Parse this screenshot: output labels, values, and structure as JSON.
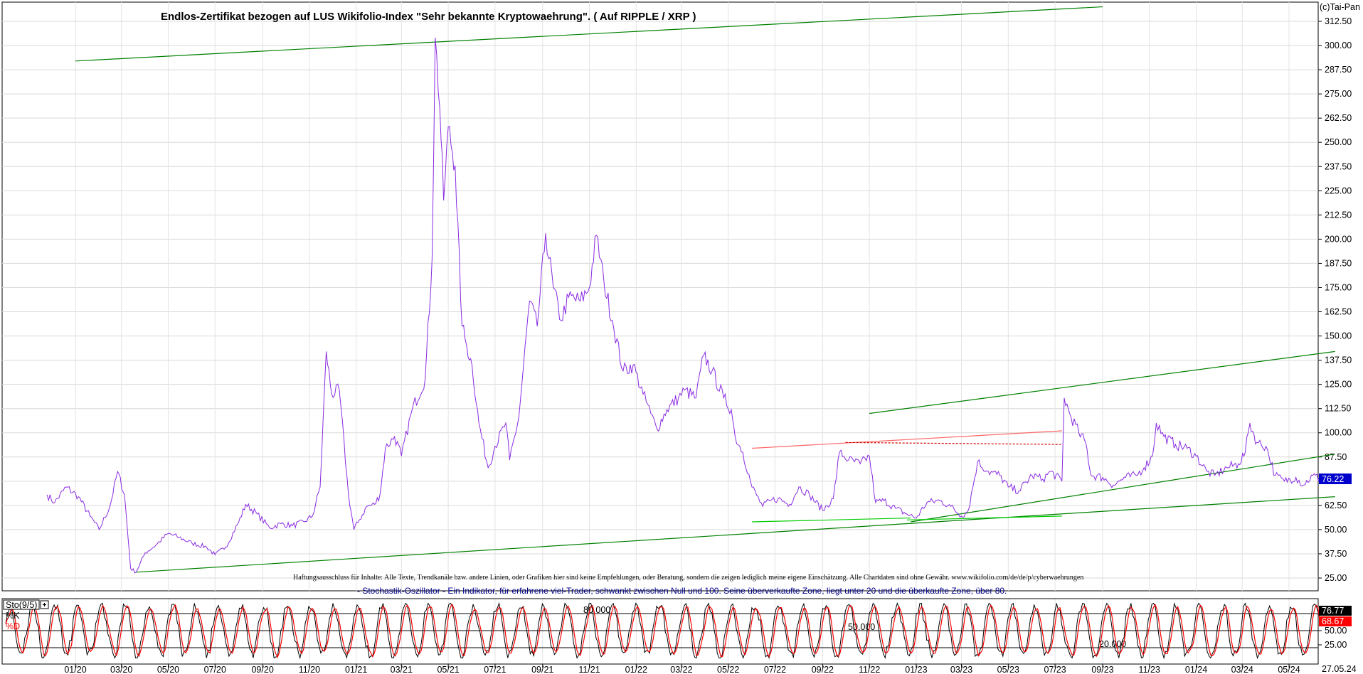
{
  "chart_data": [
    {
      "type": "line",
      "title": "Endlos-Zertifikat bezogen auf LUS Wikifolio-Index \"Sehr bekannte Kryptowaehrung\". ( Auf RIPPLE / XRP )",
      "copyright": "(c)Tai-Pan",
      "disclaimer": "Haftungsausschluss für Inhalte: Alle Texte, Trendkanäle bzw. andere Linien, oder Grafiken hier sind keine Empfehlungen, oder Beratung, sondern die zeigen lediglich meine eigene Einschätzung. Alle Chartdaten sind ohne Gewähr.  www.wikifolio.com/de/de/p/cyberwaehrungen",
      "ylim": [
        25,
        312.5
      ],
      "yticks": [
        "312.50",
        "300.00",
        "287.50",
        "275.00",
        "262.50",
        "250.00",
        "237.50",
        "225.00",
        "212.50",
        "200.00",
        "187.50",
        "175.00",
        "162.50",
        "150.00",
        "137.50",
        "125.00",
        "112.50",
        "100.00",
        "87.50",
        "75.00",
        "62.50",
        "50.00",
        "37.50",
        "25.00"
      ],
      "last_value_label": "76.22",
      "last_value": 76.22,
      "x_range": [
        "2019-11-25",
        "2024-06-15"
      ],
      "series_color": "#8a2be2",
      "series": [
        {
          "values": [
            [
              "2019-11-25",
              68
            ],
            [
              "2019-12-05",
              64
            ],
            [
              "2019-12-20",
              72
            ],
            [
              "2020-01-05",
              67
            ],
            [
              "2020-01-20",
              57
            ],
            [
              "2020-02-01",
              50
            ],
            [
              "2020-02-15",
              62
            ],
            [
              "2020-02-25",
              80
            ],
            [
              "2020-03-05",
              68
            ],
            [
              "2020-03-13",
              30
            ],
            [
              "2020-03-20",
              28
            ],
            [
              "2020-04-01",
              38
            ],
            [
              "2020-04-15",
              42
            ],
            [
              "2020-05-01",
              48
            ],
            [
              "2020-05-15",
              46
            ],
            [
              "2020-06-01",
              43
            ],
            [
              "2020-06-20",
              41
            ],
            [
              "2020-07-01",
              37
            ],
            [
              "2020-07-15",
              41
            ],
            [
              "2020-08-01",
              54
            ],
            [
              "2020-08-10",
              63
            ],
            [
              "2020-08-25",
              58
            ],
            [
              "2020-09-10",
              51
            ],
            [
              "2020-09-25",
              53
            ],
            [
              "2020-10-10",
              52
            ],
            [
              "2020-10-25",
              54
            ],
            [
              "2020-11-05",
              57
            ],
            [
              "2020-11-15",
              72
            ],
            [
              "2020-11-23",
              142
            ],
            [
              "2020-11-30",
              120
            ],
            [
              "2020-12-10",
              122
            ],
            [
              "2020-12-22",
              68
            ],
            [
              "2020-12-29",
              50
            ],
            [
              "2021-01-05",
              55
            ],
            [
              "2021-01-15",
              62
            ],
            [
              "2021-01-25",
              63
            ],
            [
              "2021-02-01",
              68
            ],
            [
              "2021-02-08",
              92
            ],
            [
              "2021-02-20",
              98
            ],
            [
              "2021-03-01",
              88
            ],
            [
              "2021-03-15",
              112
            ],
            [
              "2021-04-01",
              128
            ],
            [
              "2021-04-10",
              190
            ],
            [
              "2021-04-14",
              304
            ],
            [
              "2021-04-20",
              268
            ],
            [
              "2021-04-25",
              220
            ],
            [
              "2021-05-01",
              258
            ],
            [
              "2021-05-10",
              238
            ],
            [
              "2021-05-19",
              155
            ],
            [
              "2021-05-25",
              145
            ],
            [
              "2021-06-01",
              135
            ],
            [
              "2021-06-10",
              105
            ],
            [
              "2021-06-22",
              82
            ],
            [
              "2021-07-01",
              93
            ],
            [
              "2021-07-15",
              105
            ],
            [
              "2021-07-20",
              86
            ],
            [
              "2021-08-01",
              108
            ],
            [
              "2021-08-15",
              168
            ],
            [
              "2021-08-25",
              155
            ],
            [
              "2021-09-05",
              203
            ],
            [
              "2021-09-15",
              175
            ],
            [
              "2021-09-25",
              158
            ],
            [
              "2021-10-05",
              170
            ],
            [
              "2021-10-20",
              168
            ],
            [
              "2021-11-01",
              175
            ],
            [
              "2021-11-10",
              202
            ],
            [
              "2021-11-20",
              178
            ],
            [
              "2021-12-01",
              158
            ],
            [
              "2021-12-15",
              132
            ],
            [
              "2021-12-28",
              135
            ],
            [
              "2022-01-10",
              120
            ],
            [
              "2022-01-20",
              110
            ],
            [
              "2022-01-28",
              102
            ],
            [
              "2022-02-10",
              112
            ],
            [
              "2022-02-25",
              118
            ],
            [
              "2022-03-05",
              122
            ],
            [
              "2022-03-20",
              118
            ],
            [
              "2022-03-30",
              140
            ],
            [
              "2022-04-10",
              132
            ],
            [
              "2022-04-25",
              118
            ],
            [
              "2022-05-05",
              112
            ],
            [
              "2022-05-10",
              98
            ],
            [
              "2022-05-20",
              90
            ],
            [
              "2022-06-01",
              72
            ],
            [
              "2022-06-15",
              62
            ],
            [
              "2022-06-25",
              65
            ],
            [
              "2022-07-05",
              66
            ],
            [
              "2022-07-20",
              63
            ],
            [
              "2022-08-01",
              72
            ],
            [
              "2022-08-15",
              68
            ],
            [
              "2022-09-01",
              60
            ],
            [
              "2022-09-15",
              66
            ],
            [
              "2022-09-23",
              90
            ],
            [
              "2022-10-05",
              86
            ],
            [
              "2022-10-20",
              84
            ],
            [
              "2022-11-01",
              88
            ],
            [
              "2022-11-09",
              64
            ],
            [
              "2022-11-20",
              65
            ],
            [
              "2022-12-05",
              61
            ],
            [
              "2022-12-20",
              58
            ],
            [
              "2023-01-01",
              56
            ],
            [
              "2023-01-15",
              64
            ],
            [
              "2023-02-01",
              65
            ],
            [
              "2023-02-15",
              62
            ],
            [
              "2023-03-01",
              57
            ],
            [
              "2023-03-10",
              60
            ],
            [
              "2023-03-22",
              85
            ],
            [
              "2023-04-05",
              80
            ],
            [
              "2023-04-20",
              78
            ],
            [
              "2023-05-01",
              72
            ],
            [
              "2023-05-15",
              70
            ],
            [
              "2023-06-01",
              78
            ],
            [
              "2023-06-15",
              76
            ],
            [
              "2023-06-25",
              80
            ],
            [
              "2023-07-10",
              75
            ],
            [
              "2023-07-13",
              118
            ],
            [
              "2023-07-20",
              110
            ],
            [
              "2023-08-01",
              100
            ],
            [
              "2023-08-10",
              95
            ],
            [
              "2023-08-17",
              78
            ],
            [
              "2023-09-01",
              77
            ],
            [
              "2023-09-15",
              73
            ],
            [
              "2023-10-01",
              77
            ],
            [
              "2023-10-15",
              78
            ],
            [
              "2023-10-25",
              82
            ],
            [
              "2023-11-05",
              88
            ],
            [
              "2023-11-10",
              105
            ],
            [
              "2023-11-20",
              98
            ],
            [
              "2023-12-05",
              94
            ],
            [
              "2023-12-20",
              92
            ],
            [
              "2024-01-01",
              88
            ],
            [
              "2024-01-15",
              80
            ],
            [
              "2024-01-25",
              78
            ],
            [
              "2024-02-10",
              82
            ],
            [
              "2024-02-25",
              84
            ],
            [
              "2024-03-05",
              90
            ],
            [
              "2024-03-11",
              105
            ],
            [
              "2024-03-20",
              95
            ],
            [
              "2024-04-01",
              93
            ],
            [
              "2024-04-13",
              78
            ],
            [
              "2024-04-25",
              75
            ],
            [
              "2024-05-10",
              77
            ],
            [
              "2024-05-20",
              73
            ],
            [
              "2024-06-01",
              78
            ],
            [
              "2024-06-10",
              76.22
            ]
          ]
        }
      ],
      "trendlines": [
        {
          "color": "#008000",
          "points": [
            [
              "2020-03-20",
              28
            ],
            [
              "2024-06-30",
              67
            ]
          ]
        },
        {
          "color": "#008000",
          "points": [
            [
              "2020-01-01",
              292
            ],
            [
              "2023-09-01",
              320
            ]
          ]
        },
        {
          "color": "#008000",
          "points": [
            [
              "2022-11-01",
              110
            ],
            [
              "2024-06-30",
              142
            ]
          ]
        },
        {
          "color": "#008000",
          "points": [
            [
              "2022-12-25",
              54
            ],
            [
              "2024-06-30",
              89
            ]
          ]
        },
        {
          "color": "#00cc00",
          "points": [
            [
              "2022-06-01",
              54
            ],
            [
              "2022-12-25",
              56
            ]
          ]
        },
        {
          "color": "#00cc00",
          "points": [
            [
              "2022-12-20",
              55
            ],
            [
              "2023-07-10",
              57
            ]
          ]
        },
        {
          "color": "#ff6666",
          "points": [
            [
              "2022-06-01",
              92
            ],
            [
              "2023-07-10",
              101
            ]
          ]
        },
        {
          "color": "#cc0000",
          "dashed": true,
          "points": [
            [
              "2022-10-01",
              95
            ],
            [
              "2023-07-10",
              94
            ]
          ]
        }
      ],
      "xticks": [
        "01/20",
        "03/20",
        "05/20",
        "07/20",
        "09/20",
        "11/20",
        "01/21",
        "03/21",
        "05/21",
        "07/21",
        "09/21",
        "11/21",
        "01/22",
        "03/22",
        "05/22",
        "07/22",
        "09/22",
        "11/22",
        "01/23",
        "03/23",
        "05/23",
        "07/23",
        "09/23",
        "11/23",
        "01/24",
        "03/24",
        "05/24"
      ],
      "date_label": "27.05.24"
    },
    {
      "type": "line",
      "indicator_label": "Sto(9/5)",
      "description": "- Stochastik-Oszillator - Ein Indikator, für erfahrene viel-Trader, schwankt zwischen Null und 100. Seine überverkaufte Zone, liegt unter 20 und die überkaufte Zone, über 80.",
      "ylim": [
        0,
        100
      ],
      "reference_levels": [
        80,
        50,
        20
      ],
      "reference_labels": [
        "80.000",
        "50.000",
        "20.000"
      ],
      "yticks": [
        "50.00",
        "25.00"
      ],
      "series": [
        {
          "name": "%K",
          "color": "#000000",
          "last_value_label": "76.77",
          "last_value": 76.77
        },
        {
          "name": "%D",
          "color": "#ff0000",
          "last_value_label": "68.67",
          "last_value": 68.67
        }
      ]
    }
  ]
}
